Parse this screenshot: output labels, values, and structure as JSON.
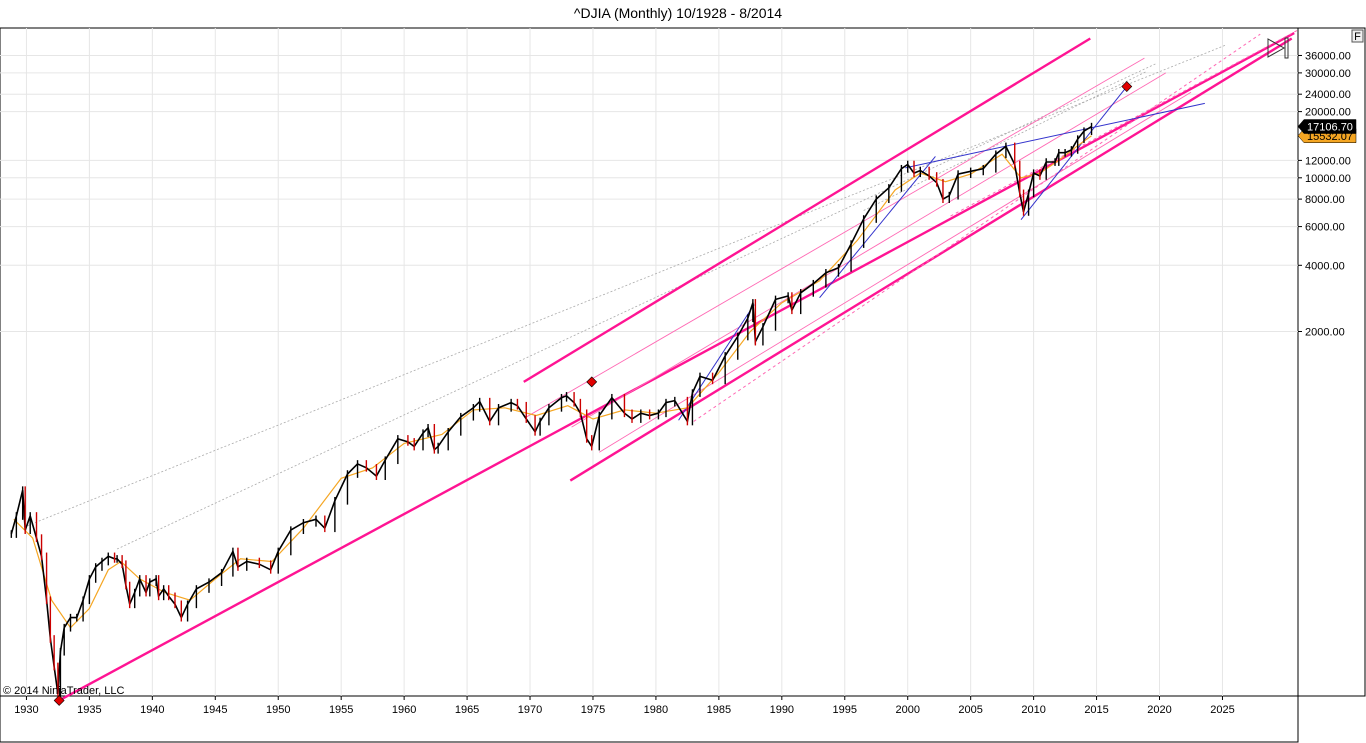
{
  "chart_data": {
    "type": "line",
    "title": "^DJIA (Monthly)  10/1928 - 8/2014",
    "copyright": "© 2014 NinjaTrader, LLC",
    "corner_button_label": "F",
    "y_scale": "log",
    "ylim": [
      44,
      48000
    ],
    "xlim": [
      1927.9,
      2031.0
    ],
    "grid": true,
    "x_ticks": [
      1930,
      1935,
      1940,
      1945,
      1950,
      1955,
      1960,
      1965,
      1970,
      1975,
      1980,
      1985,
      1990,
      1995,
      2000,
      2005,
      2010,
      2015,
      2020,
      2025
    ],
    "x_tick_labels": [
      "1930",
      "1935",
      "1940",
      "1945",
      "1950",
      "1955",
      "1960",
      "1965",
      "1970",
      "1975",
      "1980",
      "1985",
      "1990",
      "1995",
      "2000",
      "2005",
      "2010",
      "2015",
      "2020",
      "2025"
    ],
    "y_ticks": [
      2000,
      4000,
      6000,
      8000,
      10000,
      12000,
      20000,
      24000,
      30000,
      36000
    ],
    "y_tick_labels": [
      "2000.00",
      "4000.00",
      "6000.00",
      "8000.00",
      "10000.00",
      "12000.00",
      "20000.00",
      "24000.00",
      "30000.00",
      "36000.00"
    ],
    "last_price": {
      "value": 17106.7,
      "label": "17106.70",
      "bg": "#000000",
      "fg": "#ffffff"
    },
    "ma_price": {
      "value": 15532.07,
      "label": "15532.07",
      "bg": "#f5a623",
      "fg": "#000000"
    },
    "colors": {
      "price": "#000000",
      "down_bar": "#cc0000",
      "moving_average": "#f5a623",
      "channel": "#ff1493",
      "channel_inner": "#ff69b4",
      "trendline": "#3333cc",
      "gray_line": "#aaaaaa",
      "marker": "#e00000",
      "grid": "#e6e6e6"
    },
    "series": [
      {
        "type": "price",
        "x": [
          1928.8,
          1929.2,
          1929.7,
          1929.9,
          1930.3,
          1930.8,
          1931.2,
          1931.6,
          1931.9,
          1932.2,
          1932.5,
          1932.7,
          1933.0,
          1933.5,
          1934.0,
          1934.5,
          1935.0,
          1935.5,
          1936.0,
          1936.5,
          1937.0,
          1937.2,
          1937.6,
          1937.9,
          1938.2,
          1938.6,
          1939.0,
          1939.5,
          1939.8,
          1940.3,
          1940.5,
          1940.9,
          1941.3,
          1941.8,
          1942.3,
          1942.8,
          1943.5,
          1944.5,
          1945.5,
          1946.4,
          1946.8,
          1947.5,
          1948.5,
          1949.4,
          1950.0,
          1951.0,
          1952.0,
          1953.0,
          1953.7,
          1954.5,
          1955.5,
          1956.3,
          1957.0,
          1957.8,
          1958.5,
          1959.5,
          1960.3,
          1960.8,
          1961.5,
          1961.9,
          1962.4,
          1962.7,
          1963.5,
          1964.5,
          1965.5,
          1966.0,
          1966.8,
          1967.5,
          1968.5,
          1969.0,
          1969.7,
          1970.4,
          1970.8,
          1971.5,
          1972.5,
          1972.9,
          1973.5,
          1974.0,
          1974.5,
          1974.9,
          1975.5,
          1976.5,
          1977.5,
          1978.1,
          1978.8,
          1979.5,
          1980.2,
          1980.8,
          1981.5,
          1982.5,
          1982.9,
          1983.5,
          1984.5,
          1985.5,
          1986.5,
          1987.3,
          1987.7,
          1987.9,
          1988.5,
          1989.5,
          1990.5,
          1990.8,
          1991.5,
          1992.5,
          1993.5,
          1994.5,
          1995.5,
          1996.5,
          1997.5,
          1998.5,
          1999.5,
          2000.0,
          2000.5,
          2001.0,
          2001.7,
          2002.3,
          2002.8,
          2003.3,
          2004.0,
          2005.0,
          2006.0,
          2007.0,
          2007.8,
          2008.5,
          2008.9,
          2009.2,
          2009.6,
          2010.0,
          2010.5,
          2011.0,
          2011.7,
          2012.0,
          2012.5,
          2013.0,
          2013.5,
          2014.0,
          2014.6
        ],
        "y": [
          240,
          290,
          380,
          250,
          290,
          230,
          190,
          120,
          80,
          60,
          45,
          70,
          90,
          100,
          100,
          120,
          150,
          170,
          180,
          190,
          185,
          185,
          175,
          140,
          115,
          130,
          150,
          130,
          145,
          150,
          125,
          135,
          125,
          115,
          100,
          115,
          135,
          145,
          160,
          200,
          170,
          180,
          175,
          165,
          200,
          250,
          270,
          280,
          255,
          340,
          450,
          500,
          480,
          440,
          520,
          650,
          630,
          600,
          690,
          730,
          580,
          600,
          700,
          820,
          900,
          960,
          780,
          900,
          950,
          920,
          800,
          700,
          780,
          900,
          1000,
          1020,
          950,
          850,
          650,
          600,
          830,
          1000,
          850,
          800,
          850,
          830,
          850,
          950,
          970,
          780,
          1050,
          1250,
          1200,
          1550,
          1900,
          2300,
          2700,
          1800,
          2100,
          2800,
          2900,
          2500,
          3000,
          3300,
          3700,
          3900,
          5000,
          6500,
          8000,
          9000,
          11000,
          11500,
          10500,
          10800,
          10200,
          9500,
          8000,
          8300,
          10400,
          10700,
          11000,
          12800,
          13900,
          11500,
          8500,
          7000,
          8500,
          10500,
          10200,
          11800,
          11800,
          13000,
          13000,
          13400,
          15000,
          16300,
          17100
        ]
      },
      {
        "type": "moving_average",
        "x": [
          1929.0,
          1930.5,
          1932.0,
          1933.5,
          1935.0,
          1936.5,
          1937.5,
          1939.0,
          1941.0,
          1943.0,
          1945.0,
          1947.0,
          1949.5,
          1952.0,
          1955.0,
          1957.5,
          1960.0,
          1963.0,
          1965.5,
          1968.0,
          1970.5,
          1973.0,
          1975.0,
          1977.5,
          1980.0,
          1982.5,
          1985.0,
          1987.5,
          1990.0,
          1993.0,
          1996.0,
          1999.0,
          2001.0,
          2003.0,
          2005.0,
          2007.5,
          2009.0,
          2010.5,
          2012.0,
          2013.5,
          2014.6
        ],
        "y": [
          280,
          230,
          120,
          90,
          110,
          165,
          180,
          150,
          130,
          120,
          150,
          185,
          180,
          255,
          430,
          480,
          620,
          680,
          880,
          900,
          830,
          920,
          800,
          880,
          850,
          900,
          1300,
          2000,
          2700,
          3400,
          5200,
          8800,
          10500,
          9600,
          10400,
          12800,
          10000,
          10500,
          12000,
          14000,
          15532
        ]
      }
    ],
    "markers": [
      {
        "x": 1932.6,
        "y": 42
      },
      {
        "x": 1974.9,
        "y": 1180
      },
      {
        "x": 2017.4,
        "y": 26000
      }
    ]
  }
}
